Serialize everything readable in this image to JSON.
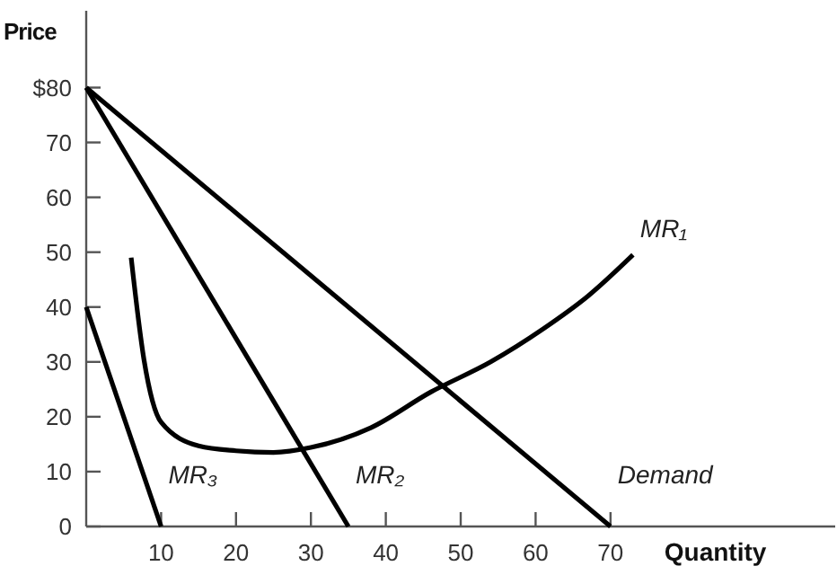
{
  "chart_data": {
    "type": "line",
    "xlabel": "Quantity",
    "ylabel": "Price",
    "xlim": [
      0,
      100
    ],
    "ylim": [
      0,
      94
    ],
    "xticks": [
      10,
      20,
      30,
      40,
      50,
      60,
      70
    ],
    "yticks": [
      0,
      10,
      20,
      30,
      40,
      50,
      60,
      70,
      {
        "value": 80,
        "label": "$80"
      }
    ],
    "grid": false,
    "legend": false,
    "marker": "none",
    "line_style": "solid",
    "series": [
      {
        "name": "MR₁",
        "color": "#000000",
        "x": [
          6,
          7.7,
          10,
          15,
          20,
          25,
          30,
          38,
          46,
          54,
          61,
          67,
          73
        ],
        "values": [
          49,
          30.5,
          19,
          14.7,
          13.8,
          13.5,
          14.4,
          18,
          24.5,
          30,
          36,
          42,
          49.5
        ]
      },
      {
        "name": "MR₂",
        "color": "#000000",
        "x": [
          0,
          35
        ],
        "values": [
          80,
          0
        ]
      },
      {
        "name": "MR₃",
        "color": "#000000",
        "x": [
          0,
          10
        ],
        "values": [
          40,
          0
        ]
      },
      {
        "name": "Demand",
        "color": "#000000",
        "x": [
          0,
          70
        ],
        "values": [
          80,
          0
        ]
      }
    ]
  }
}
